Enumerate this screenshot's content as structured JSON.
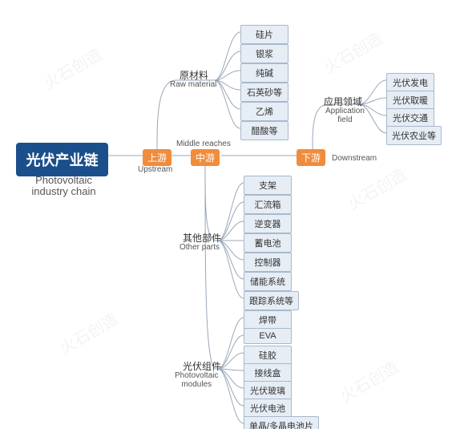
{
  "type": "tree",
  "background_color": "#ffffff",
  "line_color": "#9aa7b8",
  "styles": {
    "root": {
      "bg": "#1b4f8b",
      "fg": "#ffffff",
      "font_size": 18,
      "font_weight": "bold",
      "border_radius": 4
    },
    "stream": {
      "bg": "#f08c3c",
      "fg": "#ffffff",
      "font_size": 12,
      "border_radius": 3
    },
    "leaf": {
      "bg": "#e6edf5",
      "fg": "#333333",
      "border": "#a9b8cc",
      "font_size": 11,
      "border_radius": 2
    },
    "en_label": {
      "fg": "#555555",
      "font_size": 10
    },
    "cn_label": {
      "fg": "#333333",
      "font_size": 12
    }
  },
  "root": {
    "cn": "光伏产业链",
    "en": "Photovoltaic\nindustry chain"
  },
  "streams": {
    "up": {
      "cn": "上游",
      "en": "Upstream"
    },
    "mid": {
      "cn": "中游",
      "en": "Middle reaches"
    },
    "down": {
      "cn": "下游",
      "en": "Downstream"
    }
  },
  "branches": {
    "raw_material": {
      "cn": "原材料",
      "en": "Raw material",
      "items": [
        "硅片",
        "银浆",
        "纯碱",
        "石英砂等",
        "乙烯",
        "醋酸等"
      ]
    },
    "other_parts": {
      "cn": "其他部件",
      "en": "Other parts",
      "items": [
        "支架",
        "汇流箱",
        "逆变器",
        "蓄电池",
        "控制器",
        "储能系统",
        "跟踪系统等"
      ]
    },
    "pv_modules": {
      "cn": "光伏组件",
      "en": "Photovoltaic\nmodules",
      "items": [
        "焊带",
        "EVA",
        "硅胶",
        "接线盒",
        "光伏玻璃",
        "光伏电池",
        "单晶/多晶电池片"
      ]
    },
    "application": {
      "cn": "应用领域",
      "en": "Application\nfield",
      "items": [
        "光伏发电",
        "光伏取暖",
        "光伏交通",
        "光伏农业等"
      ]
    }
  },
  "watermark_text": "火石创造"
}
